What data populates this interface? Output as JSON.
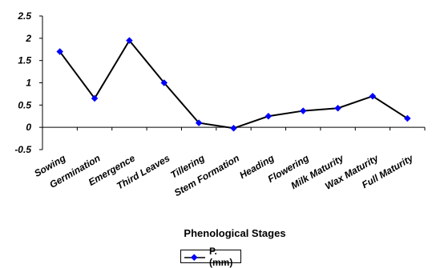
{
  "chart_data": {
    "type": "line",
    "title": "",
    "xlabel": "Phenological Stages",
    "ylabel": "",
    "categories": [
      "Sowing",
      "Germination",
      "Emergence",
      "Third Leaves",
      "Tillering",
      "Stem Formation",
      "Heading",
      "Flowering",
      "Milk Maturity",
      "Wax Maturity",
      "Full Maturity"
    ],
    "series": [
      {
        "name": "P.(mm)",
        "values": [
          1.7,
          0.65,
          1.95,
          1.0,
          0.1,
          -0.02,
          0.25,
          0.37,
          0.43,
          0.7,
          0.2
        ],
        "color": "#000000",
        "marker_color": "#0000ff"
      }
    ],
    "ylim": [
      -0.5,
      2.5
    ],
    "yticks": [
      "2.5",
      "2",
      "1.5",
      "1",
      "0.5",
      "0",
      "-0.5"
    ],
    "grid": false,
    "legend": "bottom"
  }
}
